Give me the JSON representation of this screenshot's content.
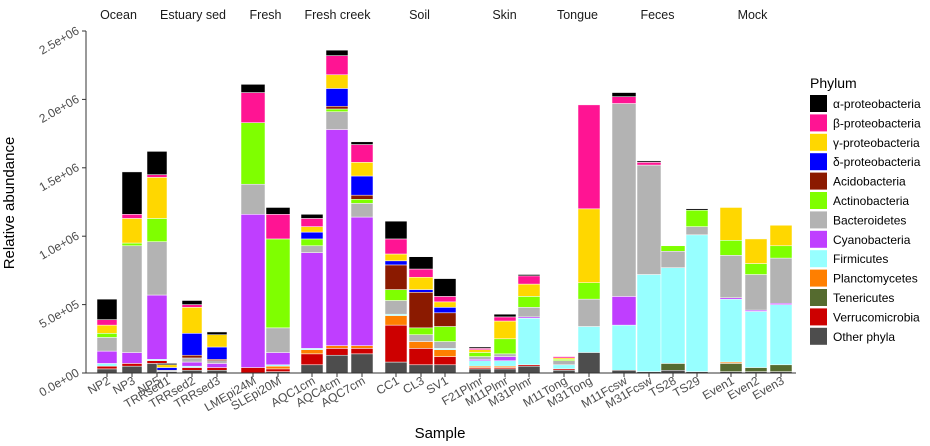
{
  "chart_data": {
    "type": "bar",
    "stacked": true,
    "faceted": true,
    "xlabel": "Sample",
    "ylabel": "Relative abundance",
    "ylim": [
      0,
      2500000
    ],
    "y_ticks": [
      0,
      500000,
      1000000,
      1500000,
      2000000,
      2500000
    ],
    "y_tick_labels": [
      "0.0e+00",
      "5.0e+05",
      "1.0e+06",
      "1.5e+06",
      "2.0e+06",
      "2.5e+06"
    ],
    "legend": {
      "title": "Phylum",
      "position": "right",
      "entries": [
        {
          "label": "α-proteobacteria",
          "color": "#000000"
        },
        {
          "label": "β-proteobacteria",
          "color": "#FF1493"
        },
        {
          "label": "γ-proteobacteria",
          "color": "#FFD700"
        },
        {
          "label": "δ-proteobacteria",
          "color": "#0000FF"
        },
        {
          "label": "Acidobacteria",
          "color": "#8B1A00"
        },
        {
          "label": "Actinobacteria",
          "color": "#7FFF00"
        },
        {
          "label": "Bacteroidetes",
          "color": "#B3B3B3"
        },
        {
          "label": "Cyanobacteria",
          "color": "#BF3EFF"
        },
        {
          "label": "Firmicutes",
          "color": "#97FFFF"
        },
        {
          "label": "Planctomycetes",
          "color": "#FF7F00"
        },
        {
          "label": "Tenericutes",
          "color": "#556B2F"
        },
        {
          "label": "Verrucomicrobia",
          "color": "#CD0000"
        },
        {
          "label": "Other phyla",
          "color": "#4D4D4D"
        }
      ]
    },
    "stack_order_bottom_to_top": [
      "Other phyla",
      "Verrucomicrobia",
      "Tenericutes",
      "Planctomycetes",
      "Firmicutes",
      "Cyanobacteria",
      "Bacteroidetes",
      "Actinobacteria",
      "Acidobacteria",
      "δ-proteobacteria",
      "γ-proteobacteria",
      "β-proteobacteria",
      "α-proteobacteria"
    ],
    "facets": [
      {
        "label": "Ocean",
        "samples": [
          {
            "name": "NP2",
            "values": {
              "Other phyla": 30000,
              "Verrucomicrobia": 20000,
              "Cyanobacteria": 90000,
              "Firmicutes": 20000,
              "Bacteroidetes": 100000,
              "Actinobacteria": 30000,
              "γ-proteobacteria": 60000,
              "β-proteobacteria": 40000,
              "α-proteobacteria": 150000
            }
          },
          {
            "name": "NP3",
            "values": {
              "Other phyla": 50000,
              "Verrucomicrobia": 20000,
              "Cyanobacteria": 80000,
              "Bacteroidetes": 780000,
              "Actinobacteria": 20000,
              "γ-proteobacteria": 180000,
              "β-proteobacteria": 30000,
              "α-proteobacteria": 310000
            }
          },
          {
            "name": "NP5",
            "values": {
              "Other phyla": 70000,
              "Verrucomicrobia": 20000,
              "Firmicutes": 10000,
              "Cyanobacteria": 470000,
              "Bacteroidetes": 390000,
              "Actinobacteria": 170000,
              "γ-proteobacteria": 300000,
              "β-proteobacteria": 20000,
              "α-proteobacteria": 170000
            }
          }
        ]
      },
      {
        "label": "Estuary sed",
        "samples": [
          {
            "name": "TRRsed1",
            "values": {
              "Other phyla": 10000,
              "Bacteroidetes": 10000,
              "δ-proteobacteria": 20000,
              "γ-proteobacteria": 20000,
              "α-proteobacteria": 10000
            }
          },
          {
            "name": "TRRsed2",
            "values": {
              "Other phyla": 20000,
              "Verrucomicrobia": 20000,
              "Firmicutes": 10000,
              "Cyanobacteria": 30000,
              "Bacteroidetes": 30000,
              "Acidobacteria": 20000,
              "δ-proteobacteria": 160000,
              "γ-proteobacteria": 190000,
              "β-proteobacteria": 20000,
              "α-proteobacteria": 30000
            }
          },
          {
            "name": "TRRsed3",
            "values": {
              "Other phyla": 20000,
              "Verrucomicrobia": 20000,
              "Cyanobacteria": 30000,
              "Bacteroidetes": 20000,
              "Acidobacteria": 10000,
              "δ-proteobacteria": 90000,
              "γ-proteobacteria": 90000,
              "α-proteobacteria": 20000
            }
          }
        ]
      },
      {
        "label": "Fresh",
        "samples": [
          {
            "name": "LMEpi24M",
            "values": {
              "Verrucomicrobia": 40000,
              "Cyanobacteria": 1120000,
              "Bacteroidetes": 220000,
              "Actinobacteria": 450000,
              "β-proteobacteria": 220000,
              "α-proteobacteria": 60000
            }
          },
          {
            "name": "SLEpi20M",
            "values": {
              "Other phyla": 10000,
              "Verrucomicrobia": 20000,
              "Planctomycetes": 20000,
              "Firmicutes": 10000,
              "Cyanobacteria": 90000,
              "Bacteroidetes": 180000,
              "Actinobacteria": 650000,
              "β-proteobacteria": 180000,
              "α-proteobacteria": 50000
            }
          }
        ]
      },
      {
        "label": "Fresh creek",
        "samples": [
          {
            "name": "AQC1cm",
            "values": {
              "Other phyla": 60000,
              "Verrucomicrobia": 80000,
              "Planctomycetes": 30000,
              "Firmicutes": 10000,
              "Cyanobacteria": 700000,
              "Bacteroidetes": 50000,
              "Actinobacteria": 50000,
              "δ-proteobacteria": 50000,
              "γ-proteobacteria": 40000,
              "β-proteobacteria": 60000,
              "α-proteobacteria": 30000
            }
          },
          {
            "name": "AQC4cm",
            "values": {
              "Other phyla": 130000,
              "Verrucomicrobia": 50000,
              "Planctomycetes": 20000,
              "Cyanobacteria": 1580000,
              "Bacteroidetes": 130000,
              "Actinobacteria": 20000,
              "Acidobacteria": 20000,
              "δ-proteobacteria": 130000,
              "γ-proteobacteria": 100000,
              "β-proteobacteria": 140000,
              "α-proteobacteria": 40000
            }
          },
          {
            "name": "AQC7cm",
            "values": {
              "Other phyla": 140000,
              "Verrucomicrobia": 40000,
              "Planctomycetes": 20000,
              "Cyanobacteria": 940000,
              "Bacteroidetes": 100000,
              "Actinobacteria": 30000,
              "Acidobacteria": 30000,
              "δ-proteobacteria": 140000,
              "γ-proteobacteria": 100000,
              "β-proteobacteria": 130000,
              "α-proteobacteria": 20000
            }
          }
        ]
      },
      {
        "label": "Soil",
        "samples": [
          {
            "name": "CC1",
            "values": {
              "Other phyla": 80000,
              "Verrucomicrobia": 270000,
              "Planctomycetes": 70000,
              "Firmicutes": 10000,
              "Bacteroidetes": 100000,
              "Actinobacteria": 80000,
              "Acidobacteria": 180000,
              "δ-proteobacteria": 30000,
              "γ-proteobacteria": 50000,
              "β-proteobacteria": 110000,
              "α-proteobacteria": 130000
            }
          },
          {
            "name": "CL3",
            "values": {
              "Other phyla": 60000,
              "Verrucomicrobia": 120000,
              "Planctomycetes": 50000,
              "Bacteroidetes": 50000,
              "Actinobacteria": 50000,
              "Acidobacteria": 260000,
              "δ-proteobacteria": 20000,
              "γ-proteobacteria": 90000,
              "β-proteobacteria": 60000,
              "α-proteobacteria": 90000
            }
          },
          {
            "name": "SV1",
            "values": {
              "Other phyla": 60000,
              "Verrucomicrobia": 60000,
              "Planctomycetes": 50000,
              "Firmicutes": 10000,
              "Bacteroidetes": 50000,
              "Actinobacteria": 110000,
              "Acidobacteria": 100000,
              "δ-proteobacteria": 40000,
              "γ-proteobacteria": 40000,
              "β-proteobacteria": 40000,
              "α-proteobacteria": 130000
            }
          }
        ]
      },
      {
        "label": "Skin",
        "samples": [
          {
            "name": "F21Plmr",
            "values": {
              "Other phyla": 30000,
              "Verrucomicrobia": 10000,
              "Planctomycetes": 10000,
              "Firmicutes": 40000,
              "Cyanobacteria": 10000,
              "Bacteroidetes": 20000,
              "Actinobacteria": 30000,
              "γ-proteobacteria": 20000,
              "β-proteobacteria": 10000,
              "α-proteobacteria": 10000
            }
          },
          {
            "name": "M11Plmr",
            "values": {
              "Other phyla": 30000,
              "Verrucomicrobia": 10000,
              "Planctomycetes": 10000,
              "Firmicutes": 40000,
              "Cyanobacteria": 30000,
              "Bacteroidetes": 20000,
              "Actinobacteria": 110000,
              "γ-proteobacteria": 130000,
              "β-proteobacteria": 30000,
              "α-proteobacteria": 20000
            }
          },
          {
            "name": "M31Plmr",
            "values": {
              "Other phyla": 50000,
              "Verrucomicrobia": 10000,
              "Firmicutes": 340000,
              "Cyanobacteria": 10000,
              "Bacteroidetes": 70000,
              "Actinobacteria": 80000,
              "γ-proteobacteria": 90000,
              "β-proteobacteria": 60000,
              "α-proteobacteria": 10000
            }
          }
        ]
      },
      {
        "label": "Tongue",
        "samples": [
          {
            "name": "M11Tong",
            "values": {
              "Other phyla": 20000,
              "Verrucomicrobia": 10000,
              "Firmicutes": 30000,
              "Bacteroidetes": 30000,
              "Actinobacteria": 10000,
              "γ-proteobacteria": 10000,
              "β-proteobacteria": 10000
            }
          },
          {
            "name": "M31Tong",
            "values": {
              "Other phyla": 150000,
              "Firmicutes": 190000,
              "Bacteroidetes": 200000,
              "Actinobacteria": 120000,
              "γ-proteobacteria": 540000,
              "β-proteobacteria": 760000
            }
          }
        ]
      },
      {
        "label": "Feces",
        "samples": [
          {
            "name": "M11Fcsw",
            "values": {
              "Other phyla": 20000,
              "Firmicutes": 330000,
              "Cyanobacteria": 210000,
              "Bacteroidetes": 1410000,
              "β-proteobacteria": 50000,
              "α-proteobacteria": 30000
            }
          },
          {
            "name": "M31Fcsw",
            "values": {
              "Other phyla": 10000,
              "Firmicutes": 710000,
              "Bacteroidetes": 800000,
              "β-proteobacteria": 20000,
              "α-proteobacteria": 10000
            }
          },
          {
            "name": "TS28",
            "values": {
              "Other phyla": 20000,
              "Tenericutes": 50000,
              "Firmicutes": 700000,
              "Bacteroidetes": 120000,
              "Actinobacteria": 40000
            }
          },
          {
            "name": "TS29",
            "values": {
              "Other phyla": 10000,
              "Firmicutes": 1000000,
              "Bacteroidetes": 60000,
              "Actinobacteria": 120000,
              "α-proteobacteria": 10000
            }
          }
        ]
      },
      {
        "label": "Mock",
        "samples": [
          {
            "name": "Even1",
            "values": {
              "Other phyla": 10000,
              "Tenericutes": 60000,
              "Planctomycetes": 10000,
              "Firmicutes": 460000,
              "Cyanobacteria": 10000,
              "Bacteroidetes": 310000,
              "Actinobacteria": 110000,
              "γ-proteobacteria": 240000
            }
          },
          {
            "name": "Even2",
            "values": {
              "Other phyla": 10000,
              "Tenericutes": 30000,
              "Firmicutes": 410000,
              "Cyanobacteria": 10000,
              "Bacteroidetes": 260000,
              "Actinobacteria": 80000,
              "γ-proteobacteria": 180000
            }
          },
          {
            "name": "Even3",
            "values": {
              "Other phyla": 10000,
              "Tenericutes": 50000,
              "Firmicutes": 440000,
              "Cyanobacteria": 10000,
              "Bacteroidetes": 330000,
              "Actinobacteria": 90000,
              "γ-proteobacteria": 150000
            }
          }
        ]
      }
    ]
  }
}
